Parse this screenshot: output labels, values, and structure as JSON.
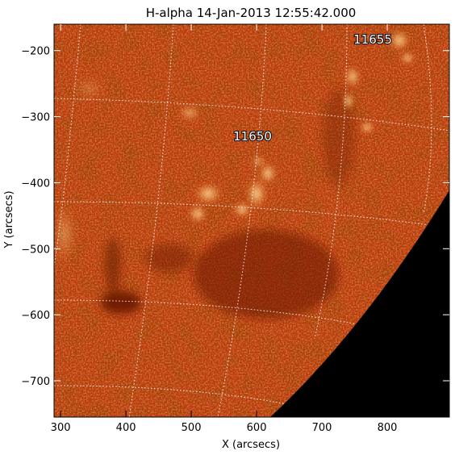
{
  "title": "H-alpha 14-Jan-2013 12:55:42.000",
  "x_axis": {
    "label": "X (arcsecs)",
    "range": [
      290,
      895
    ],
    "ticks": [
      300,
      400,
      500,
      600,
      700,
      800
    ],
    "tick_labels": [
      "300",
      "400",
      "500",
      "600",
      "700",
      "800"
    ]
  },
  "y_axis": {
    "label": "Y (arcsecs)",
    "range": [
      -755,
      -160
    ],
    "ticks": [
      -200,
      -300,
      -400,
      -500,
      -600,
      -700
    ],
    "tick_labels": [
      "−200",
      "−300",
      "−400",
      "−500",
      "−600",
      "−700"
    ]
  },
  "annotations": [
    {
      "text": "11655",
      "x": 760,
      "y": -182
    },
    {
      "text": "11650",
      "x": 583,
      "y": -325
    }
  ],
  "colors": {
    "disk_base": "#b83a08",
    "bright_plage": "#ffd28c",
    "dark_filament": "#5a1200",
    "background_space": "#000000",
    "grid_lines": "#ffffff"
  },
  "grid": true
}
